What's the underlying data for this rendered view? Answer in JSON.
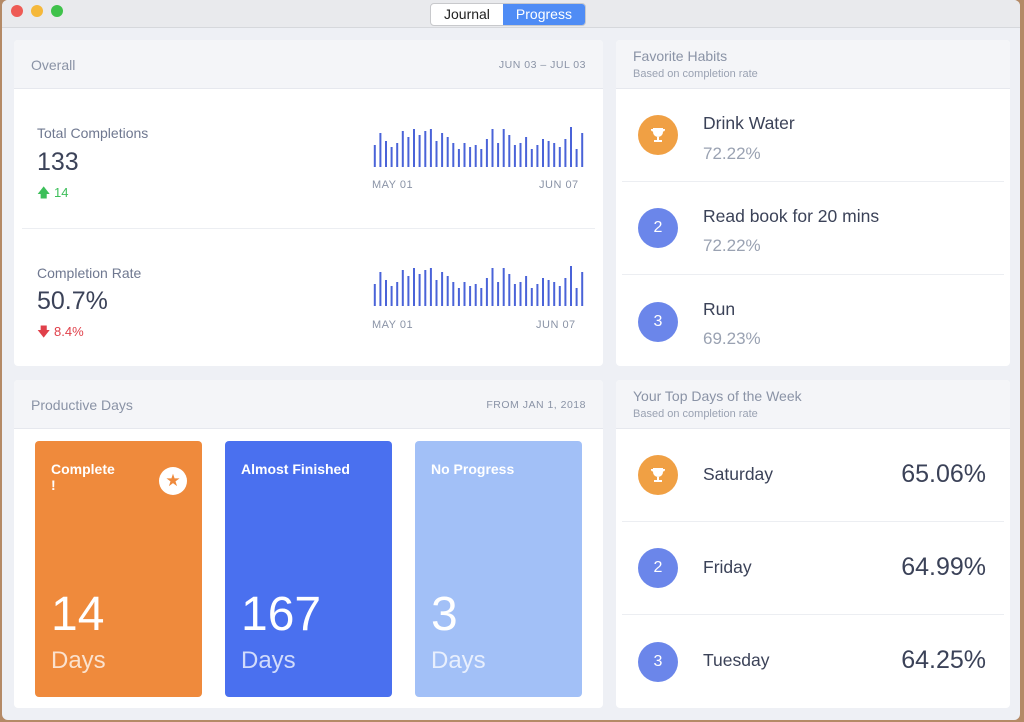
{
  "titlebar": {
    "tabs": [
      {
        "label": "Journal",
        "active": false
      },
      {
        "label": "Progress",
        "active": true
      }
    ]
  },
  "overall": {
    "title": "Overall",
    "range": "JUN 03 – JUL 03",
    "total": {
      "label": "Total Completions",
      "value": "133",
      "change": "14",
      "direction": "up",
      "spark_start": "MAY 01",
      "spark_end": "JUN 07"
    },
    "rate": {
      "label": "Completion Rate",
      "value": "50.7%",
      "change": "8.4%",
      "direction": "down",
      "spark_start": "MAY 01",
      "spark_end": "JUN 07"
    },
    "spark_values": [
      0.55,
      0.85,
      0.65,
      0.5,
      0.6,
      0.9,
      0.75,
      0.95,
      0.8,
      0.9,
      0.95,
      0.65,
      0.85,
      0.75,
      0.6,
      0.45,
      0.6,
      0.5,
      0.55,
      0.45,
      0.7,
      0.95,
      0.6,
      0.95,
      0.8,
      0.55,
      0.6,
      0.75,
      0.45,
      0.55,
      0.7,
      0.65,
      0.6,
      0.5,
      0.7,
      1.0,
      0.45,
      0.85
    ],
    "colors": {
      "up": "#3dbf5a",
      "down": "#e0404a",
      "bars": "#4a63d8"
    }
  },
  "favorite": {
    "title": "Favorite Habits",
    "subtitle": "Based on completion rate",
    "items": [
      {
        "rank": "",
        "icon": "trophy-icon",
        "name": "Drink Water",
        "pct": "72.22%"
      },
      {
        "rank": "2",
        "icon": "",
        "name": "Read book for 20 mins",
        "pct": "72.22%"
      },
      {
        "rank": "3",
        "icon": "",
        "name": "Run",
        "pct": "69.23%"
      }
    ]
  },
  "productive": {
    "title": "Productive Days",
    "range": "FROM JAN 1, 2018",
    "cards": [
      {
        "label": "Complete",
        "extra": "!",
        "value": "14",
        "unit": "Days",
        "color": "#ef8a3c",
        "icon": "star-icon"
      },
      {
        "label": "Almost Finished",
        "value": "167",
        "unit": "Days",
        "color": "#4a70ef"
      },
      {
        "label": "No Progress",
        "value": "3",
        "unit": "Days",
        "color": "#a2c0f7"
      }
    ]
  },
  "topdays": {
    "title": "Your Top Days of the Week",
    "subtitle": "Based on completion rate",
    "items": [
      {
        "rank": "",
        "icon": "trophy-icon",
        "day": "Saturday",
        "pct": "65.06%"
      },
      {
        "rank": "2",
        "icon": "",
        "day": "Friday",
        "pct": "64.99%"
      },
      {
        "rank": "3",
        "icon": "",
        "day": "Tuesday",
        "pct": "64.25%"
      }
    ]
  }
}
